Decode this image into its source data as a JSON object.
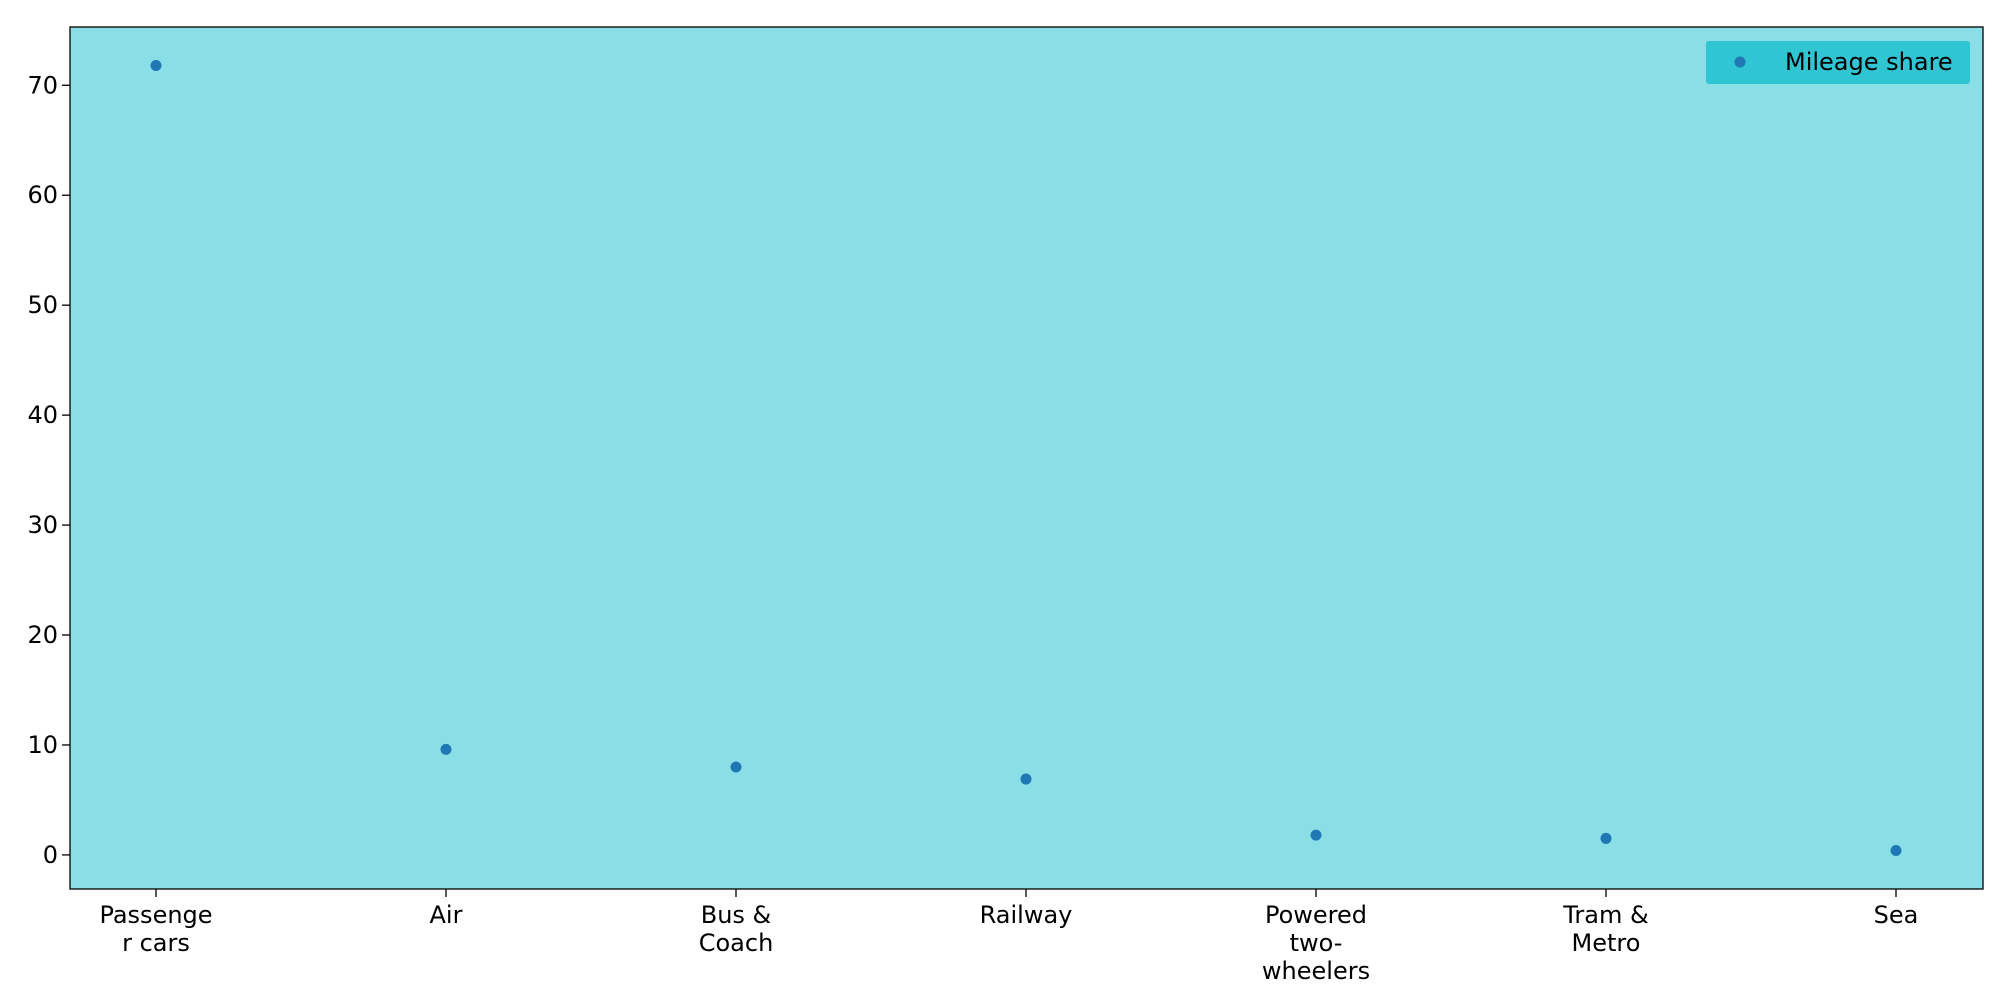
{
  "chart_data": {
    "type": "scatter",
    "categories": [
      [
        "Passenge",
        "r cars"
      ],
      [
        "Air"
      ],
      [
        "Bus &",
        "Coach"
      ],
      [
        "Railway"
      ],
      [
        "Powered",
        "two-",
        "wheelers"
      ],
      [
        "Tram &",
        "Metro"
      ],
      [
        "Sea"
      ]
    ],
    "series": [
      {
        "name": "Mileage share",
        "values": [
          71.8,
          9.6,
          8.0,
          6.9,
          1.8,
          1.5,
          0.4
        ]
      }
    ],
    "y_ticks": [
      0,
      10,
      20,
      30,
      40,
      50,
      60,
      70
    ],
    "ylim": [
      -3.1,
      75.3
    ],
    "grid": false,
    "legend_position": "top-right",
    "colors": {
      "plot_background": "#8adfe6",
      "legend_background": "#2fc5d3",
      "marker": "#1f77b4",
      "axis": "#000000"
    }
  }
}
